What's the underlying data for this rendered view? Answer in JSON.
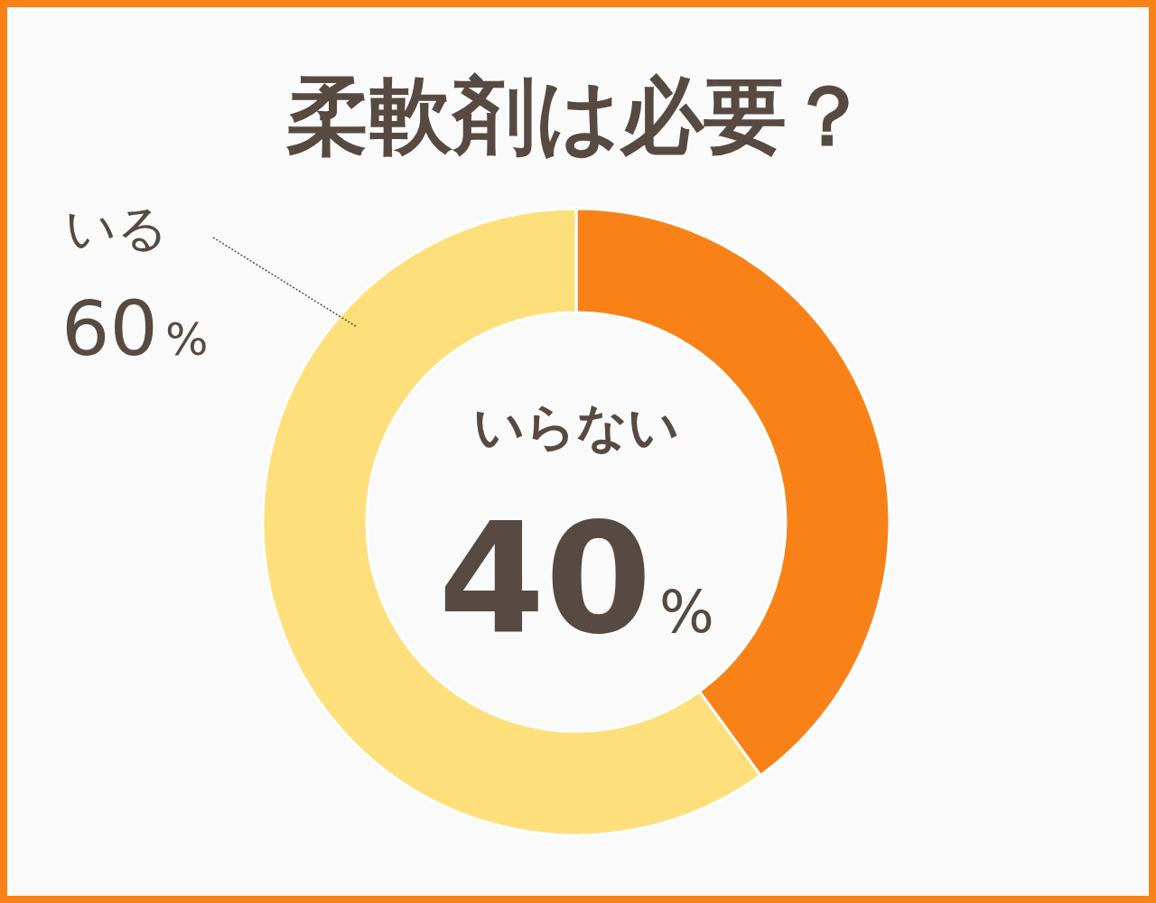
{
  "chart_data": {
    "type": "donut",
    "title": "柔軟剤は必要？",
    "categories": [
      "いらない",
      "いる"
    ],
    "values": [
      40,
      60
    ],
    "colors": [
      "#f98218",
      "#fde07c"
    ],
    "value_labels": [
      "40%",
      "60%"
    ]
  }
}
